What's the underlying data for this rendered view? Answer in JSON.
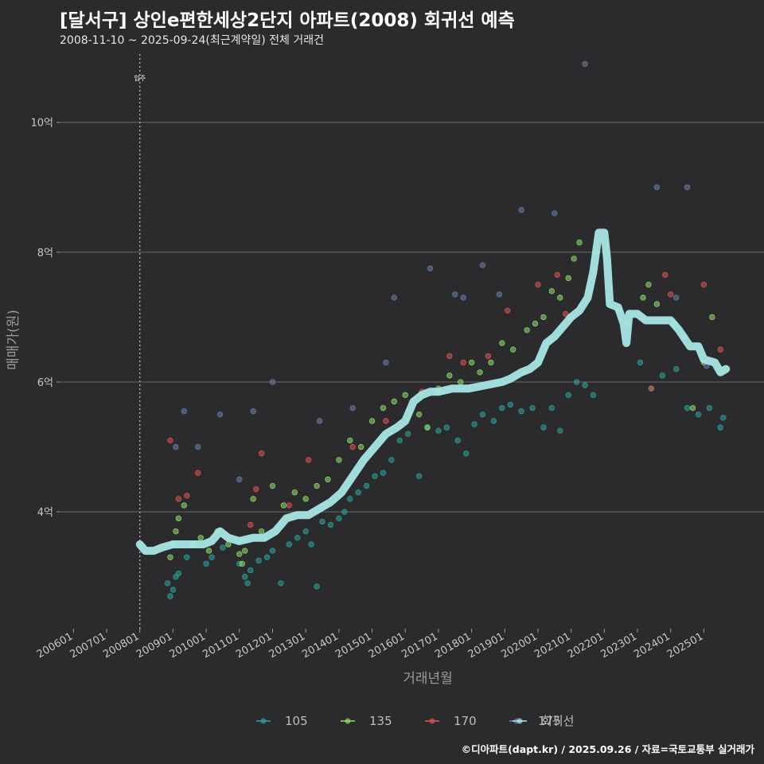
{
  "header": {
    "title": "[달서구] 상인e편한세상2단지 아파트(2008) 회귀선 예측",
    "subtitle": "2008-11-10 ~ 2025-09-24(최근계약일) 전체 거래건",
    "caption": "©디아파트(dapt.kr) / 2025.09.26 / 자료=국토교통부 실거래가"
  },
  "chart_data": {
    "type": "scatter",
    "title": "[달서구] 상인e편한세상2단지 아파트(2008) 회귀선 예측",
    "xlabel": "거래년월",
    "ylabel": "매매가(원)",
    "xlim": [
      "2005-08",
      "2026-05"
    ],
    "ylim": [
      2.2,
      11.1
    ],
    "y_unit": "억",
    "x_ticks": [
      "200601",
      "200701",
      "200801",
      "200901",
      "201001",
      "201101",
      "201201",
      "201301",
      "201401",
      "201501",
      "201601",
      "201701",
      "201801",
      "201901",
      "202001",
      "202101",
      "202201",
      "202301",
      "202401",
      "202501"
    ],
    "y_ticks": [
      {
        "value": 4,
        "label": "4억"
      },
      {
        "value": 6,
        "label": "6억"
      },
      {
        "value": 8,
        "label": "8억"
      },
      {
        "value": 10,
        "label": "10억"
      }
    ],
    "grid": true,
    "legend_position": "bottom",
    "annotation": {
      "x": "2008-01",
      "label": "입주"
    },
    "colors": {
      "105": "#2aa5a0",
      "135": "#8ee06a",
      "170": "#e05454",
      "175": "#6a7fa8",
      "회귀선": "#a8e6e6"
    },
    "series": [
      {
        "name": "105",
        "points": [
          [
            "2008-11",
            2.9
          ],
          [
            "2008-12",
            2.7
          ],
          [
            "2009-01",
            2.8
          ],
          [
            "2009-02",
            3.0
          ],
          [
            "2009-03",
            3.05
          ],
          [
            "2009-06",
            3.3
          ],
          [
            "2009-09",
            3.5
          ],
          [
            "2010-01",
            3.2
          ],
          [
            "2010-03",
            3.3
          ],
          [
            "2010-07",
            3.45
          ],
          [
            "2011-01",
            3.2
          ],
          [
            "2011-03",
            3.0
          ],
          [
            "2011-04",
            2.9
          ],
          [
            "2011-05",
            3.1
          ],
          [
            "2011-08",
            3.25
          ],
          [
            "2011-11",
            3.3
          ],
          [
            "2012-01",
            3.4
          ],
          [
            "2012-04",
            2.9
          ],
          [
            "2012-07",
            3.5
          ],
          [
            "2012-10",
            3.6
          ],
          [
            "2013-01",
            3.7
          ],
          [
            "2013-03",
            3.5
          ],
          [
            "2013-05",
            2.85
          ],
          [
            "2013-07",
            3.85
          ],
          [
            "2013-10",
            3.8
          ],
          [
            "2014-01",
            3.9
          ],
          [
            "2014-03",
            4.0
          ],
          [
            "2014-05",
            4.2
          ],
          [
            "2014-08",
            4.3
          ],
          [
            "2014-11",
            4.4
          ],
          [
            "2015-02",
            4.55
          ],
          [
            "2015-05",
            4.6
          ],
          [
            "2015-08",
            4.8
          ],
          [
            "2015-11",
            5.1
          ],
          [
            "2016-02",
            5.2
          ],
          [
            "2016-06",
            4.55
          ],
          [
            "2016-09",
            5.3
          ],
          [
            "2017-01",
            5.25
          ],
          [
            "2017-04",
            5.3
          ],
          [
            "2017-08",
            5.1
          ],
          [
            "2017-11",
            4.9
          ],
          [
            "2018-02",
            5.35
          ],
          [
            "2018-05",
            5.5
          ],
          [
            "2018-09",
            5.4
          ],
          [
            "2018-12",
            5.6
          ],
          [
            "2019-03",
            5.65
          ],
          [
            "2019-07",
            5.55
          ],
          [
            "2019-11",
            5.6
          ],
          [
            "2020-03",
            5.3
          ],
          [
            "2020-06",
            5.6
          ],
          [
            "2020-09",
            5.25
          ],
          [
            "2020-12",
            5.8
          ],
          [
            "2021-03",
            6.0
          ],
          [
            "2021-06",
            5.95
          ],
          [
            "2021-09",
            5.8
          ],
          [
            "2023-02",
            6.3
          ],
          [
            "2023-06",
            5.9
          ],
          [
            "2023-10",
            6.1
          ],
          [
            "2024-03",
            6.2
          ],
          [
            "2024-07",
            5.6
          ],
          [
            "2024-11",
            5.5
          ],
          [
            "2025-03",
            5.6
          ],
          [
            "2025-07",
            5.3
          ],
          [
            "2025-08",
            5.45
          ]
        ]
      },
      {
        "name": "135",
        "points": [
          [
            "2008-12",
            3.3
          ],
          [
            "2009-01",
            3.5
          ],
          [
            "2009-02",
            3.7
          ],
          [
            "2009-03",
            3.9
          ],
          [
            "2009-05",
            4.1
          ],
          [
            "2009-08",
            3.5
          ],
          [
            "2009-11",
            3.6
          ],
          [
            "2010-02",
            3.4
          ],
          [
            "2010-05",
            3.7
          ],
          [
            "2010-09",
            3.5
          ],
          [
            "2011-01",
            3.35
          ],
          [
            "2011-02",
            3.2
          ],
          [
            "2011-03",
            3.4
          ],
          [
            "2011-06",
            4.2
          ],
          [
            "2011-09",
            3.7
          ],
          [
            "2012-01",
            4.4
          ],
          [
            "2012-05",
            4.1
          ],
          [
            "2012-09",
            4.3
          ],
          [
            "2013-01",
            4.2
          ],
          [
            "2013-05",
            4.4
          ],
          [
            "2013-09",
            4.5
          ],
          [
            "2014-01",
            4.8
          ],
          [
            "2014-05",
            5.1
          ],
          [
            "2014-09",
            5.0
          ],
          [
            "2015-01",
            5.4
          ],
          [
            "2015-05",
            5.6
          ],
          [
            "2015-09",
            5.7
          ],
          [
            "2016-01",
            5.8
          ],
          [
            "2016-06",
            5.5
          ],
          [
            "2016-09",
            5.3
          ],
          [
            "2017-01",
            5.9
          ],
          [
            "2017-05",
            6.1
          ],
          [
            "2017-09",
            6.0
          ],
          [
            "2018-01",
            6.3
          ],
          [
            "2018-04",
            6.15
          ],
          [
            "2018-08",
            6.3
          ],
          [
            "2018-12",
            6.6
          ],
          [
            "2019-04",
            6.5
          ],
          [
            "2019-09",
            6.8
          ],
          [
            "2019-12",
            6.9
          ],
          [
            "2020-03",
            7.0
          ],
          [
            "2020-06",
            7.4
          ],
          [
            "2020-09",
            7.3
          ],
          [
            "2020-12",
            7.6
          ],
          [
            "2021-02",
            7.9
          ],
          [
            "2021-04",
            8.15
          ],
          [
            "2021-10",
            8.0
          ],
          [
            "2022-06",
            7.1
          ],
          [
            "2022-09",
            6.9
          ],
          [
            "2023-03",
            7.3
          ],
          [
            "2023-05",
            7.5
          ],
          [
            "2023-08",
            7.2
          ],
          [
            "2024-02",
            6.9
          ],
          [
            "2024-06",
            6.7
          ],
          [
            "2024-09",
            5.6
          ],
          [
            "2025-01",
            6.3
          ],
          [
            "2025-04",
            7.0
          ]
        ]
      },
      {
        "name": "170",
        "points": [
          [
            "2008-12",
            5.1
          ],
          [
            "2009-03",
            4.2
          ],
          [
            "2009-06",
            4.25
          ],
          [
            "2009-10",
            4.6
          ],
          [
            "2011-05",
            3.8
          ],
          [
            "2011-07",
            4.35
          ],
          [
            "2011-09",
            4.9
          ],
          [
            "2012-07",
            4.1
          ],
          [
            "2013-02",
            4.8
          ],
          [
            "2014-06",
            5.0
          ],
          [
            "2015-06",
            5.4
          ],
          [
            "2016-07",
            5.85
          ],
          [
            "2017-05",
            6.4
          ],
          [
            "2017-10",
            6.3
          ],
          [
            "2018-07",
            6.4
          ],
          [
            "2019-02",
            7.1
          ],
          [
            "2020-01",
            7.5
          ],
          [
            "2020-08",
            7.65
          ],
          [
            "2020-11",
            7.05
          ],
          [
            "2023-06",
            5.9
          ],
          [
            "2023-11",
            7.65
          ],
          [
            "2024-01",
            7.35
          ],
          [
            "2025-01",
            7.5
          ],
          [
            "2025-07",
            6.5
          ]
        ]
      },
      {
        "name": "175",
        "points": [
          [
            "2009-02",
            5.0
          ],
          [
            "2009-05",
            5.55
          ],
          [
            "2009-10",
            5.0
          ],
          [
            "2010-06",
            5.5
          ],
          [
            "2011-01",
            4.5
          ],
          [
            "2011-06",
            5.55
          ],
          [
            "2012-01",
            6.0
          ],
          [
            "2013-06",
            5.4
          ],
          [
            "2014-06",
            5.6
          ],
          [
            "2015-06",
            6.3
          ],
          [
            "2015-09",
            7.3
          ],
          [
            "2016-10",
            7.75
          ],
          [
            "2017-07",
            7.35
          ],
          [
            "2017-10",
            7.3
          ],
          [
            "2018-05",
            7.8
          ],
          [
            "2018-11",
            7.35
          ],
          [
            "2019-07",
            8.65
          ],
          [
            "2020-07",
            8.6
          ],
          [
            "2021-01",
            7.0
          ],
          [
            "2021-06",
            10.9
          ],
          [
            "2023-03",
            7.0
          ],
          [
            "2023-08",
            9.0
          ],
          [
            "2024-03",
            7.3
          ],
          [
            "2024-07",
            9.0
          ],
          [
            "2025-02",
            6.25
          ]
        ]
      },
      {
        "name": "회귀선",
        "points": [
          [
            "2008-01",
            3.5
          ],
          [
            "2008-03",
            3.4
          ],
          [
            "2008-06",
            3.4
          ],
          [
            "2008-09",
            3.45
          ],
          [
            "2009-01",
            3.5
          ],
          [
            "2009-06",
            3.5
          ],
          [
            "2009-12",
            3.5
          ],
          [
            "2010-03",
            3.55
          ],
          [
            "2010-06",
            3.7
          ],
          [
            "2010-09",
            3.6
          ],
          [
            "2011-01",
            3.55
          ],
          [
            "2011-06",
            3.6
          ],
          [
            "2011-10",
            3.6
          ],
          [
            "2012-02",
            3.7
          ],
          [
            "2012-06",
            3.9
          ],
          [
            "2012-10",
            3.95
          ],
          [
            "2013-02",
            3.95
          ],
          [
            "2013-06",
            4.05
          ],
          [
            "2013-10",
            4.15
          ],
          [
            "2014-02",
            4.3
          ],
          [
            "2014-06",
            4.55
          ],
          [
            "2014-10",
            4.8
          ],
          [
            "2015-02",
            5.0
          ],
          [
            "2015-06",
            5.2
          ],
          [
            "2015-10",
            5.3
          ],
          [
            "2016-01",
            5.4
          ],
          [
            "2016-04",
            5.7
          ],
          [
            "2016-07",
            5.8
          ],
          [
            "2016-10",
            5.85
          ],
          [
            "2017-01",
            5.85
          ],
          [
            "2017-06",
            5.9
          ],
          [
            "2017-12",
            5.9
          ],
          [
            "2018-06",
            5.95
          ],
          [
            "2018-12",
            6.0
          ],
          [
            "2019-03",
            6.05
          ],
          [
            "2019-07",
            6.15
          ],
          [
            "2019-10",
            6.2
          ],
          [
            "2020-01",
            6.3
          ],
          [
            "2020-04",
            6.6
          ],
          [
            "2020-07",
            6.7
          ],
          [
            "2020-10",
            6.85
          ],
          [
            "2021-01",
            7.0
          ],
          [
            "2021-04",
            7.1
          ],
          [
            "2021-07",
            7.3
          ],
          [
            "2021-09",
            7.7
          ],
          [
            "2021-11",
            8.3
          ],
          [
            "2022-01",
            8.3
          ],
          [
            "2022-02",
            7.9
          ],
          [
            "2022-03",
            7.2
          ],
          [
            "2022-06",
            7.15
          ],
          [
            "2022-08",
            6.9
          ],
          [
            "2022-09",
            6.6
          ],
          [
            "2022-10",
            7.05
          ],
          [
            "2023-01",
            7.05
          ],
          [
            "2023-04",
            6.95
          ],
          [
            "2023-08",
            6.95
          ],
          [
            "2024-01",
            6.95
          ],
          [
            "2024-04",
            6.8
          ],
          [
            "2024-08",
            6.55
          ],
          [
            "2024-11",
            6.55
          ],
          [
            "2025-01",
            6.35
          ],
          [
            "2025-05",
            6.3
          ],
          [
            "2025-07",
            6.15
          ],
          [
            "2025-09",
            6.2
          ]
        ]
      }
    ]
  }
}
